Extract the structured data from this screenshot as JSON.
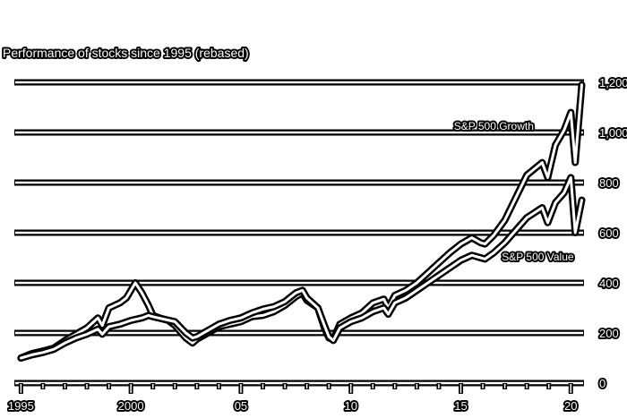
{
  "chart_data": {
    "type": "line",
    "title": "Performance of stocks since 1995 (rebased)",
    "xlabel": "",
    "ylabel": "",
    "xlim": [
      1994.7,
      2020.6
    ],
    "ylim": [
      0,
      1250
    ],
    "y_ticks": [
      0,
      200,
      400,
      600,
      800,
      1000,
      1200
    ],
    "y_tick_labels": [
      "0",
      "200",
      "400",
      "600",
      "800",
      "1,000",
      "1,200"
    ],
    "x_ticks": [
      1995,
      2000,
      2005,
      2010,
      2015,
      2020
    ],
    "x_tick_labels": [
      "1995",
      "2000",
      "05",
      "10",
      "15",
      "20"
    ],
    "grid": true,
    "colors": {
      "line": "#ffffff",
      "outline": "#000000",
      "background": "#ffffff"
    },
    "series": [
      {
        "name": "S&P 500 Growth",
        "x": [
          1995.0,
          1995.5,
          1996.0,
          1996.5,
          1997.0,
          1997.5,
          1998.0,
          1998.5,
          1998.7,
          1999.0,
          1999.5,
          1999.8,
          2000.2,
          2000.5,
          2000.8,
          2001.0,
          2001.3,
          2001.7,
          2002.0,
          2002.5,
          2002.8,
          2003.0,
          2003.5,
          2004.0,
          2004.5,
          2005.0,
          2005.5,
          2006.0,
          2006.5,
          2007.0,
          2007.5,
          2007.8,
          2008.0,
          2008.5,
          2008.8,
          2009.0,
          2009.2,
          2009.5,
          2010.0,
          2010.5,
          2011.0,
          2011.5,
          2011.7,
          2012.0,
          2012.5,
          2013.0,
          2013.5,
          2014.0,
          2014.5,
          2015.0,
          2015.5,
          2015.9,
          2016.1,
          2016.5,
          2017.0,
          2017.5,
          2018.0,
          2018.7,
          2018.95,
          2019.3,
          2019.7,
          2020.0,
          2020.2,
          2020.5
        ],
        "y": [
          100,
          118,
          128,
          140,
          170,
          195,
          220,
          260,
          230,
          300,
          320,
          340,
          400,
          360,
          310,
          270,
          260,
          250,
          230,
          180,
          160,
          175,
          200,
          225,
          235,
          245,
          265,
          270,
          285,
          310,
          345,
          360,
          330,
          300,
          220,
          180,
          175,
          235,
          260,
          280,
          320,
          335,
          300,
          350,
          370,
          400,
          440,
          480,
          520,
          555,
          580,
          560,
          555,
          590,
          650,
          740,
          830,
          880,
          820,
          950,
          1010,
          1080,
          880,
          1190
        ]
      },
      {
        "name": "S&P 500 Value",
        "x": [
          1995.0,
          1995.5,
          1996.0,
          1996.5,
          1997.0,
          1997.5,
          1998.0,
          1998.5,
          1998.7,
          1999.0,
          1999.5,
          2000.0,
          2000.5,
          2000.8,
          2001.0,
          2001.5,
          2002.0,
          2002.5,
          2002.8,
          2003.0,
          2003.5,
          2004.0,
          2004.5,
          2005.0,
          2005.5,
          2006.0,
          2006.5,
          2007.0,
          2007.5,
          2007.8,
          2008.0,
          2008.5,
          2008.8,
          2009.0,
          2009.2,
          2009.5,
          2010.0,
          2010.5,
          2011.0,
          2011.5,
          2011.7,
          2012.0,
          2012.5,
          2013.0,
          2013.5,
          2014.0,
          2014.5,
          2015.0,
          2015.5,
          2015.9,
          2016.1,
          2016.5,
          2017.0,
          2017.5,
          2018.0,
          2018.7,
          2018.95,
          2019.3,
          2019.7,
          2020.0,
          2020.2,
          2020.5
        ],
        "y": [
          100,
          113,
          122,
          135,
          160,
          180,
          195,
          215,
          195,
          225,
          235,
          250,
          260,
          270,
          265,
          255,
          245,
          200,
          180,
          185,
          210,
          235,
          250,
          260,
          280,
          295,
          305,
          325,
          360,
          370,
          340,
          300,
          230,
          185,
          170,
          220,
          245,
          260,
          285,
          300,
          275,
          320,
          340,
          370,
          400,
          430,
          460,
          490,
          510,
          500,
          495,
          520,
          560,
          610,
          660,
          700,
          640,
          720,
          760,
          820,
          600,
          730
        ]
      }
    ],
    "annotations": [
      {
        "text": "S&P 500 Growth",
        "x": 2016.5,
        "y": 1010
      },
      {
        "text": "S&P 500 Value",
        "x": 2018.5,
        "y": 490
      }
    ]
  }
}
